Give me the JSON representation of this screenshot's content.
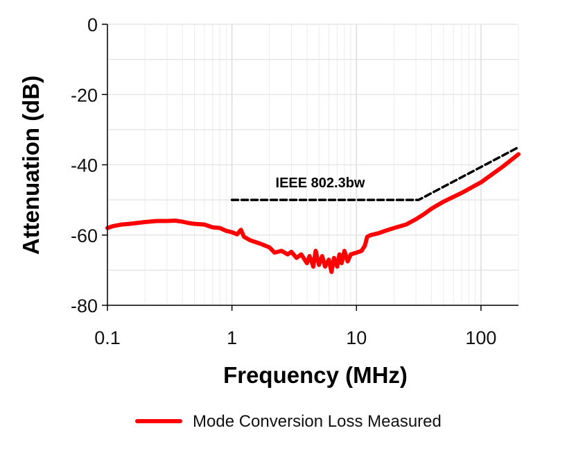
{
  "chart_data": {
    "type": "line",
    "title": "",
    "xlabel": "Frequency (MHz)",
    "ylabel": "Attenuation (dB)",
    "x_scale": "log",
    "xlim": [
      0.1,
      200
    ],
    "ylim": [
      -80,
      0
    ],
    "x_ticks": [
      0.1,
      1,
      10,
      100
    ],
    "x_tick_labels": [
      "0.1",
      "1",
      "10",
      "100"
    ],
    "y_ticks": [
      0,
      -20,
      -40,
      -60,
      -80
    ],
    "y_tick_labels": [
      "0",
      "-20",
      "-40",
      "-60",
      "-80"
    ],
    "grid": true,
    "legend_position": "bottom",
    "series": [
      {
        "name": "Mode Conversion Loss Measured",
        "color": "#ff0000",
        "style": "solid",
        "x": [
          0.1,
          0.11,
          0.13,
          0.15,
          0.18,
          0.2,
          0.25,
          0.3,
          0.35,
          0.4,
          0.45,
          0.5,
          0.6,
          0.7,
          0.8,
          0.9,
          1.0,
          1.1,
          1.18,
          1.25,
          1.4,
          1.7,
          2.0,
          2.2,
          2.5,
          2.8,
          3.0,
          3.3,
          3.6,
          4.0,
          4.2,
          4.5,
          4.7,
          5.0,
          5.3,
          5.6,
          6.0,
          6.3,
          6.6,
          7.0,
          7.3,
          7.6,
          8.0,
          8.5,
          9.0,
          10,
          11,
          11.7,
          12.2,
          13,
          15,
          17,
          20,
          25,
          30,
          35,
          40,
          50,
          70,
          100,
          150,
          200
        ],
        "y": [
          -58,
          -57.5,
          -57,
          -56.8,
          -56.5,
          -56.3,
          -56,
          -56,
          -55.9,
          -56.2,
          -56.6,
          -56.8,
          -57,
          -57.8,
          -58,
          -58.8,
          -59.2,
          -59.8,
          -58.5,
          -60.5,
          -61.5,
          -62.5,
          -63.5,
          -65,
          -64.5,
          -65.5,
          -64.8,
          -66.5,
          -65.5,
          -68,
          -66,
          -69,
          -64.5,
          -68.5,
          -66,
          -69,
          -67,
          -70.5,
          -66.5,
          -69,
          -65.5,
          -68,
          -64.5,
          -67.5,
          -65.5,
          -65,
          -64.5,
          -63,
          -60.5,
          -60,
          -59.5,
          -58.8,
          -58,
          -57,
          -55.5,
          -54,
          -52.5,
          -50.5,
          -48,
          -45,
          -40.5,
          -37
        ]
      },
      {
        "label": "IEEE 802.3bw",
        "color": "#000000",
        "style": "dashed",
        "x": [
          1,
          31.6,
          200
        ],
        "y": [
          -50,
          -50,
          -35
        ]
      }
    ]
  }
}
